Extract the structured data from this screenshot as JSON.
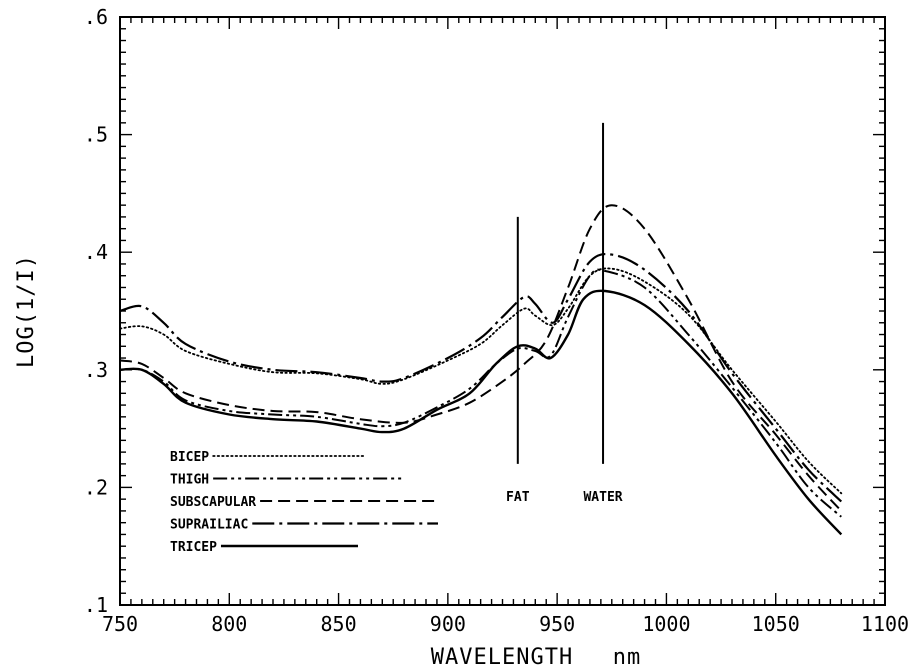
{
  "chart_data": {
    "type": "line",
    "xlabel": "WAVELENGTH",
    "xlabel_unit": "nm",
    "ylabel": "LOG(1/I)",
    "xlim": [
      750,
      1100
    ],
    "ylim": [
      0.1,
      0.6
    ],
    "x_tick_labels": [
      "750",
      "800",
      "850",
      "900",
      "950",
      "1000",
      "1050",
      "1100"
    ],
    "y_tick_labels": [
      ".1",
      ".2",
      ".3",
      ".4",
      ".5",
      ".6"
    ],
    "x_ticks": [
      750,
      800,
      850,
      900,
      950,
      1000,
      1050,
      1100
    ],
    "y_ticks": [
      0.1,
      0.2,
      0.3,
      0.4,
      0.5,
      0.6
    ],
    "legend_placement": "lower-left",
    "series": [
      {
        "name": "BICEP",
        "style": "dotted",
        "points": [
          [
            750,
            0.335
          ],
          [
            760,
            0.337
          ],
          [
            770,
            0.33
          ],
          [
            780,
            0.316
          ],
          [
            800,
            0.305
          ],
          [
            820,
            0.298
          ],
          [
            840,
            0.297
          ],
          [
            860,
            0.292
          ],
          [
            870,
            0.288
          ],
          [
            880,
            0.292
          ],
          [
            900,
            0.308
          ],
          [
            915,
            0.322
          ],
          [
            925,
            0.338
          ],
          [
            935,
            0.352
          ],
          [
            940,
            0.346
          ],
          [
            948,
            0.338
          ],
          [
            955,
            0.352
          ],
          [
            965,
            0.38
          ],
          [
            975,
            0.386
          ],
          [
            990,
            0.375
          ],
          [
            1010,
            0.347
          ],
          [
            1030,
            0.3
          ],
          [
            1050,
            0.256
          ],
          [
            1065,
            0.222
          ],
          [
            1080,
            0.195
          ]
        ]
      },
      {
        "name": "THIGH",
        "style": "dash-dot-dot",
        "points": [
          [
            750,
            0.3
          ],
          [
            760,
            0.3
          ],
          [
            770,
            0.29
          ],
          [
            780,
            0.274
          ],
          [
            800,
            0.265
          ],
          [
            820,
            0.262
          ],
          [
            840,
            0.26
          ],
          [
            860,
            0.254
          ],
          [
            870,
            0.252
          ],
          [
            880,
            0.255
          ],
          [
            895,
            0.268
          ],
          [
            910,
            0.284
          ],
          [
            922,
            0.305
          ],
          [
            932,
            0.318
          ],
          [
            940,
            0.316
          ],
          [
            947,
            0.312
          ],
          [
            955,
            0.345
          ],
          [
            965,
            0.38
          ],
          [
            972,
            0.384
          ],
          [
            990,
            0.37
          ],
          [
            1010,
            0.33
          ],
          [
            1030,
            0.285
          ],
          [
            1050,
            0.238
          ],
          [
            1065,
            0.2
          ],
          [
            1080,
            0.175
          ]
        ]
      },
      {
        "name": "SUBSCAPULAR",
        "style": "dashed",
        "points": [
          [
            750,
            0.308
          ],
          [
            760,
            0.305
          ],
          [
            770,
            0.293
          ],
          [
            780,
            0.28
          ],
          [
            800,
            0.27
          ],
          [
            820,
            0.265
          ],
          [
            840,
            0.264
          ],
          [
            860,
            0.258
          ],
          [
            880,
            0.255
          ],
          [
            895,
            0.262
          ],
          [
            910,
            0.272
          ],
          [
            925,
            0.29
          ],
          [
            935,
            0.305
          ],
          [
            945,
            0.325
          ],
          [
            955,
            0.37
          ],
          [
            965,
            0.42
          ],
          [
            975,
            0.44
          ],
          [
            990,
            0.42
          ],
          [
            1010,
            0.36
          ],
          [
            1030,
            0.29
          ],
          [
            1050,
            0.245
          ],
          [
            1065,
            0.21
          ],
          [
            1080,
            0.18
          ]
        ]
      },
      {
        "name": "SUPRAILIAC",
        "style": "long-dash-dot",
        "points": [
          [
            750,
            0.35
          ],
          [
            760,
            0.354
          ],
          [
            770,
            0.34
          ],
          [
            780,
            0.322
          ],
          [
            800,
            0.307
          ],
          [
            820,
            0.3
          ],
          [
            840,
            0.298
          ],
          [
            860,
            0.293
          ],
          [
            870,
            0.29
          ],
          [
            880,
            0.293
          ],
          [
            900,
            0.31
          ],
          [
            915,
            0.327
          ],
          [
            925,
            0.345
          ],
          [
            935,
            0.362
          ],
          [
            940,
            0.356
          ],
          [
            948,
            0.34
          ],
          [
            955,
            0.36
          ],
          [
            965,
            0.392
          ],
          [
            975,
            0.398
          ],
          [
            990,
            0.385
          ],
          [
            1010,
            0.35
          ],
          [
            1030,
            0.297
          ],
          [
            1050,
            0.25
          ],
          [
            1065,
            0.215
          ],
          [
            1080,
            0.188
          ]
        ]
      },
      {
        "name": "TRICEP",
        "style": "solid",
        "points": [
          [
            750,
            0.3
          ],
          [
            760,
            0.3
          ],
          [
            770,
            0.288
          ],
          [
            780,
            0.272
          ],
          [
            800,
            0.262
          ],
          [
            820,
            0.258
          ],
          [
            840,
            0.256
          ],
          [
            860,
            0.25
          ],
          [
            870,
            0.247
          ],
          [
            880,
            0.25
          ],
          [
            895,
            0.266
          ],
          [
            910,
            0.28
          ],
          [
            922,
            0.305
          ],
          [
            932,
            0.32
          ],
          [
            940,
            0.318
          ],
          [
            947,
            0.31
          ],
          [
            955,
            0.33
          ],
          [
            962,
            0.36
          ],
          [
            972,
            0.367
          ],
          [
            990,
            0.355
          ],
          [
            1010,
            0.322
          ],
          [
            1030,
            0.28
          ],
          [
            1050,
            0.227
          ],
          [
            1065,
            0.19
          ],
          [
            1080,
            0.16
          ]
        ]
      }
    ],
    "annotations": [
      {
        "label": "FAT",
        "x": 932,
        "y_top": 0.43,
        "y_bottom": 0.22
      },
      {
        "label": "WATER",
        "x": 971,
        "y_top": 0.51,
        "y_bottom": 0.22
      }
    ]
  }
}
